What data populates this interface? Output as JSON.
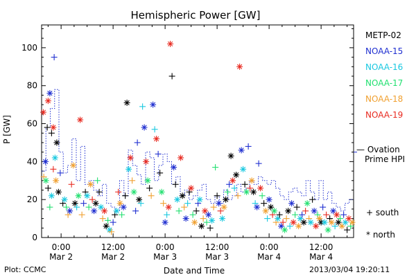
{
  "chart_data": {
    "type": "scatter",
    "title": "Hemispheric Power [GW]",
    "ylabel": "P [GW]",
    "xlabel": "Date and Time",
    "ylim": [
      0,
      112
    ],
    "xlim": [
      -4.5,
      67.5
    ],
    "x_unit": "hours since 2013-03-02 00:00 UT",
    "yticks": [
      0,
      20,
      40,
      60,
      80,
      100
    ],
    "xticks": [
      {
        "x": 0,
        "time": "0:00",
        "date": "Mar 2"
      },
      {
        "x": 12,
        "time": "12:00",
        "date": "Mar 2"
      },
      {
        "x": 24,
        "time": "0:00",
        "date": "Mar 3"
      },
      {
        "x": 36,
        "time": "12:00",
        "date": "Mar 3"
      },
      {
        "x": 48,
        "time": "0:00",
        "date": "Mar 4"
      },
      {
        "x": 60,
        "time": "12:00",
        "date": "Mar 4"
      }
    ],
    "legend_placement": "right",
    "series": [
      {
        "name": "METP-02",
        "color": "#000000"
      },
      {
        "name": "NOAA-15",
        "color": "#1f2fd0"
      },
      {
        "name": "NOAA-16",
        "color": "#18c8e0"
      },
      {
        "name": "NOAA-17",
        "color": "#22e070"
      },
      {
        "name": "NOAA-18",
        "color": "#f0a030"
      },
      {
        "name": "NOAA-19",
        "color": "#e82a20"
      }
    ],
    "marker_legend": [
      {
        "symbol": "+",
        "label": "south"
      },
      {
        "symbol": "*",
        "label": "north"
      }
    ],
    "model": {
      "name": "Ovation Prime HPI",
      "name_line1": "— Ovation",
      "name_line2": "Prime HPI",
      "color": "#1f2fd0"
    },
    "model_steps": [
      [
        -4.5,
        35
      ],
      [
        -3.5,
        58
      ],
      [
        -2.5,
        68
      ],
      [
        -1.5,
        78
      ],
      [
        -0.5,
        45
      ],
      [
        0.5,
        34
      ],
      [
        1.5,
        38
      ],
      [
        2.5,
        52
      ],
      [
        3.5,
        30
      ],
      [
        4.5,
        48
      ],
      [
        5.5,
        28
      ],
      [
        6.5,
        30
      ],
      [
        7.5,
        25
      ],
      [
        8.5,
        22
      ],
      [
        9.5,
        28
      ],
      [
        10.5,
        18
      ],
      [
        11.5,
        16
      ],
      [
        12.5,
        14
      ],
      [
        13.5,
        30
      ],
      [
        14.5,
        22
      ],
      [
        15.5,
        46
      ],
      [
        16.5,
        38
      ],
      [
        17.5,
        33
      ],
      [
        18.5,
        28
      ],
      [
        19.5,
        45
      ],
      [
        20.5,
        42
      ],
      [
        21.5,
        30
      ],
      [
        22.5,
        38
      ],
      [
        23.5,
        44
      ],
      [
        24.5,
        40
      ],
      [
        25.5,
        28
      ],
      [
        26.5,
        32
      ],
      [
        27.5,
        22
      ],
      [
        28.5,
        25
      ],
      [
        29.5,
        20
      ],
      [
        30.5,
        22
      ],
      [
        31.5,
        25
      ],
      [
        32.5,
        28
      ],
      [
        33.5,
        20
      ],
      [
        34.5,
        18
      ],
      [
        35.5,
        22
      ],
      [
        36.5,
        18
      ],
      [
        37.5,
        25
      ],
      [
        38.5,
        20
      ],
      [
        39.5,
        22
      ],
      [
        40.5,
        28
      ],
      [
        41.5,
        24
      ],
      [
        42.5,
        26
      ],
      [
        43.5,
        30
      ],
      [
        44.5,
        28
      ],
      [
        45.5,
        32
      ],
      [
        46.5,
        30
      ],
      [
        47.5,
        28
      ],
      [
        48.5,
        30
      ],
      [
        49.5,
        26
      ],
      [
        50.5,
        22
      ],
      [
        51.5,
        20
      ],
      [
        52.5,
        24
      ],
      [
        53.5,
        26
      ],
      [
        54.5,
        24
      ],
      [
        55.5,
        22
      ],
      [
        56.5,
        30
      ],
      [
        57.5,
        24
      ],
      [
        58.5,
        20
      ],
      [
        59.5,
        30
      ],
      [
        60.5,
        20
      ],
      [
        61.5,
        24
      ],
      [
        62.5,
        18
      ],
      [
        63.5,
        16
      ],
      [
        64.5,
        14
      ],
      [
        65.5,
        18
      ],
      [
        66.5,
        20
      ],
      [
        67.5,
        20
      ]
    ],
    "points": [
      [
        -4.1,
        66,
        5,
        "n"
      ],
      [
        -3.6,
        40,
        1,
        "n"
      ],
      [
        -3.2,
        58,
        0,
        "s"
      ],
      [
        -3.0,
        72,
        5,
        "n"
      ],
      [
        -2.6,
        76,
        1,
        "n"
      ],
      [
        -2.2,
        55,
        0,
        "s"
      ],
      [
        -1.8,
        58,
        5,
        "n"
      ],
      [
        -1.4,
        42,
        2,
        "n"
      ],
      [
        -1.0,
        50,
        0,
        "n"
      ],
      [
        -4.0,
        32,
        4,
        "s"
      ],
      [
        -3.5,
        30,
        3,
        "n"
      ],
      [
        -3.0,
        26,
        0,
        "s"
      ],
      [
        -2.6,
        16,
        3,
        "s"
      ],
      [
        -2.2,
        22,
        2,
        "n"
      ],
      [
        -1.8,
        36,
        5,
        "s"
      ],
      [
        -1.2,
        30,
        4,
        "n"
      ],
      [
        -0.6,
        24,
        0,
        "n"
      ],
      [
        -0.2,
        34,
        1,
        "s"
      ],
      [
        -1.6,
        95,
        1,
        "s"
      ],
      [
        0.4,
        18,
        0,
        "s"
      ],
      [
        0.8,
        20,
        2,
        "n"
      ],
      [
        1.2,
        16,
        3,
        "s"
      ],
      [
        1.6,
        12,
        4,
        "s"
      ],
      [
        2.0,
        14,
        1,
        "n"
      ],
      [
        2.4,
        28,
        5,
        "s"
      ],
      [
        2.8,
        38,
        4,
        "n"
      ],
      [
        3.2,
        18,
        0,
        "n"
      ],
      [
        3.6,
        16,
        2,
        "s"
      ],
      [
        4.0,
        22,
        3,
        "n"
      ],
      [
        4.4,
        62,
        5,
        "n"
      ],
      [
        4.8,
        12,
        4,
        "s"
      ],
      [
        5.2,
        18,
        1,
        "s"
      ],
      [
        5.6,
        24,
        0,
        "s"
      ],
      [
        6.0,
        22,
        2,
        "n"
      ],
      [
        6.4,
        16,
        3,
        "s"
      ],
      [
        6.8,
        28,
        4,
        "n"
      ],
      [
        7.2,
        20,
        5,
        "s"
      ],
      [
        7.6,
        14,
        1,
        "n"
      ],
      [
        8.0,
        18,
        0,
        "n"
      ],
      [
        8.4,
        30,
        3,
        "s"
      ],
      [
        8.8,
        24,
        0,
        "s"
      ],
      [
        9.2,
        16,
        2,
        "n"
      ],
      [
        9.6,
        10,
        4,
        "s"
      ],
      [
        10.0,
        14,
        5,
        "n"
      ],
      [
        10.4,
        6,
        0,
        "n"
      ],
      [
        10.8,
        9,
        3,
        "s"
      ],
      [
        11.2,
        4,
        2,
        "n"
      ],
      [
        11.6,
        3,
        4,
        "s"
      ],
      [
        12.0,
        8,
        1,
        "s"
      ],
      [
        12.4,
        12,
        0,
        "s"
      ],
      [
        12.8,
        14,
        2,
        "n"
      ],
      [
        13.2,
        24,
        5,
        "s"
      ],
      [
        13.6,
        18,
        4,
        "n"
      ],
      [
        14.0,
        12,
        3,
        "s"
      ],
      [
        14.4,
        16,
        1,
        "n"
      ],
      [
        14.8,
        22,
        0,
        "s"
      ],
      [
        15.2,
        71,
        0,
        "n"
      ],
      [
        15.6,
        36,
        2,
        "n"
      ],
      [
        16.0,
        42,
        5,
        "n"
      ],
      [
        16.4,
        30,
        4,
        "s"
      ],
      [
        16.8,
        24,
        3,
        "n"
      ],
      [
        17.2,
        14,
        1,
        "s"
      ],
      [
        17.6,
        50,
        1,
        "s"
      ],
      [
        18.0,
        20,
        0,
        "n"
      ],
      [
        18.4,
        18,
        2,
        "s"
      ],
      [
        18.8,
        69,
        2,
        "s"
      ],
      [
        19.2,
        58,
        1,
        "n"
      ],
      [
        19.6,
        40,
        5,
        "n"
      ],
      [
        20.0,
        30,
        3,
        "n"
      ],
      [
        20.4,
        26,
        0,
        "s"
      ],
      [
        20.8,
        22,
        4,
        "s"
      ],
      [
        21.2,
        70,
        1,
        "n"
      ],
      [
        21.6,
        57,
        2,
        "s"
      ],
      [
        22.0,
        52,
        5,
        "n"
      ],
      [
        22.4,
        44,
        1,
        "s"
      ],
      [
        22.8,
        34,
        0,
        "s"
      ],
      [
        23.2,
        24,
        3,
        "n"
      ],
      [
        23.6,
        18,
        4,
        "s"
      ],
      [
        24.0,
        8,
        1,
        "n"
      ],
      [
        24.4,
        12,
        2,
        "s"
      ],
      [
        24.8,
        16,
        5,
        "n"
      ],
      [
        25.2,
        102,
        5,
        "n"
      ],
      [
        25.6,
        85,
        0,
        "s"
      ],
      [
        26.0,
        37,
        1,
        "n"
      ],
      [
        26.4,
        28,
        0,
        "s"
      ],
      [
        26.8,
        20,
        2,
        "n"
      ],
      [
        27.2,
        14,
        3,
        "s"
      ],
      [
        27.6,
        42,
        5,
        "n"
      ],
      [
        28.0,
        22,
        0,
        "n"
      ],
      [
        28.4,
        16,
        4,
        "s"
      ],
      [
        28.8,
        10,
        1,
        "n"
      ],
      [
        29.2,
        18,
        2,
        "s"
      ],
      [
        29.6,
        24,
        0,
        "s"
      ],
      [
        30.0,
        26,
        5,
        "n"
      ],
      [
        30.4,
        12,
        3,
        "s"
      ],
      [
        30.8,
        8,
        4,
        "n"
      ],
      [
        31.2,
        14,
        0,
        "s"
      ],
      [
        31.6,
        18,
        1,
        "s"
      ],
      [
        32.0,
        20,
        2,
        "n"
      ],
      [
        32.4,
        6,
        0,
        "n"
      ],
      [
        32.8,
        10,
        4,
        "s"
      ],
      [
        33.2,
        14,
        5,
        "n"
      ],
      [
        33.6,
        8,
        3,
        "s"
      ],
      [
        34.0,
        12,
        1,
        "n"
      ],
      [
        34.4,
        5,
        0,
        "s"
      ],
      [
        34.8,
        9,
        2,
        "n"
      ],
      [
        35.2,
        16,
        4,
        "s"
      ],
      [
        35.6,
        37,
        3,
        "s"
      ],
      [
        36.0,
        22,
        0,
        "s"
      ],
      [
        36.4,
        18,
        1,
        "n"
      ],
      [
        36.8,
        14,
        5,
        "s"
      ],
      [
        37.2,
        10,
        2,
        "n"
      ],
      [
        37.6,
        16,
        4,
        "n"
      ],
      [
        38.0,
        20,
        0,
        "n"
      ],
      [
        38.4,
        24,
        3,
        "s"
      ],
      [
        38.8,
        28,
        1,
        "s"
      ],
      [
        39.2,
        43,
        0,
        "n"
      ],
      [
        39.6,
        30,
        5,
        "n"
      ],
      [
        40.0,
        26,
        2,
        "s"
      ],
      [
        40.4,
        33,
        0,
        "n"
      ],
      [
        40.8,
        22,
        4,
        "s"
      ],
      [
        41.2,
        90,
        5,
        "n"
      ],
      [
        41.6,
        46,
        1,
        "n"
      ],
      [
        42.0,
        36,
        2,
        "n"
      ],
      [
        42.4,
        28,
        0,
        "s"
      ],
      [
        42.8,
        24,
        3,
        "n"
      ],
      [
        43.2,
        48,
        1,
        "s"
      ],
      [
        43.6,
        26,
        5,
        "s"
      ],
      [
        44.0,
        30,
        4,
        "n"
      ],
      [
        44.4,
        24,
        0,
        "n"
      ],
      [
        44.8,
        18,
        2,
        "s"
      ],
      [
        45.2,
        16,
        1,
        "n"
      ],
      [
        45.6,
        39,
        1,
        "s"
      ],
      [
        46.0,
        26,
        5,
        "n"
      ],
      [
        46.4,
        22,
        3,
        "s"
      ],
      [
        46.8,
        18,
        0,
        "s"
      ],
      [
        47.2,
        14,
        4,
        "n"
      ],
      [
        47.6,
        10,
        2,
        "s"
      ],
      [
        48.0,
        20,
        1,
        "n"
      ],
      [
        48.4,
        16,
        0,
        "n"
      ],
      [
        48.8,
        12,
        5,
        "s"
      ],
      [
        49.2,
        14,
        3,
        "n"
      ],
      [
        49.6,
        8,
        4,
        "s"
      ],
      [
        50.0,
        10,
        2,
        "n"
      ],
      [
        50.4,
        12,
        0,
        "s"
      ],
      [
        50.8,
        6,
        1,
        "n"
      ],
      [
        51.2,
        8,
        5,
        "s"
      ],
      [
        51.6,
        4,
        3,
        "n"
      ],
      [
        52.0,
        10,
        4,
        "s"
      ],
      [
        52.4,
        14,
        0,
        "n"
      ],
      [
        52.8,
        6,
        2,
        "s"
      ],
      [
        53.2,
        18,
        1,
        "n"
      ],
      [
        53.6,
        8,
        5,
        "n"
      ],
      [
        54.0,
        12,
        3,
        "s"
      ],
      [
        54.4,
        16,
        0,
        "s"
      ],
      [
        54.8,
        6,
        4,
        "n"
      ],
      [
        55.2,
        10,
        2,
        "n"
      ],
      [
        55.6,
        12,
        1,
        "s"
      ],
      [
        56.0,
        8,
        0,
        "n"
      ],
      [
        56.4,
        14,
        5,
        "s"
      ],
      [
        56.8,
        18,
        3,
        "n"
      ],
      [
        57.2,
        10,
        4,
        "s"
      ],
      [
        57.6,
        8,
        2,
        "n"
      ],
      [
        58.0,
        20,
        0,
        "s"
      ],
      [
        58.4,
        14,
        1,
        "n"
      ],
      [
        58.8,
        6,
        5,
        "n"
      ],
      [
        59.2,
        12,
        3,
        "s"
      ],
      [
        59.6,
        10,
        4,
        "n"
      ],
      [
        60.0,
        8,
        0,
        "n"
      ],
      [
        60.4,
        16,
        1,
        "s"
      ],
      [
        60.8,
        8,
        2,
        "n"
      ],
      [
        61.2,
        12,
        5,
        "s"
      ],
      [
        61.6,
        4,
        3,
        "n"
      ],
      [
        62.0,
        10,
        0,
        "s"
      ],
      [
        62.4,
        8,
        4,
        "n"
      ],
      [
        62.8,
        14,
        1,
        "n"
      ],
      [
        63.2,
        6,
        2,
        "s"
      ],
      [
        63.6,
        12,
        5,
        "n"
      ],
      [
        64.0,
        8,
        0,
        "n"
      ],
      [
        64.4,
        10,
        3,
        "s"
      ],
      [
        64.8,
        6,
        4,
        "n"
      ],
      [
        65.2,
        12,
        1,
        "s"
      ],
      [
        65.6,
        8,
        2,
        "n"
      ],
      [
        66.0,
        4,
        0,
        "s"
      ],
      [
        66.4,
        10,
        5,
        "n"
      ],
      [
        66.8,
        6,
        3,
        "s"
      ],
      [
        67.2,
        8,
        4,
        "n"
      ]
    ]
  },
  "footer": {
    "plot_credit": "Plot: CCMC",
    "timestamp": "2013/03/04 19:20:11"
  }
}
